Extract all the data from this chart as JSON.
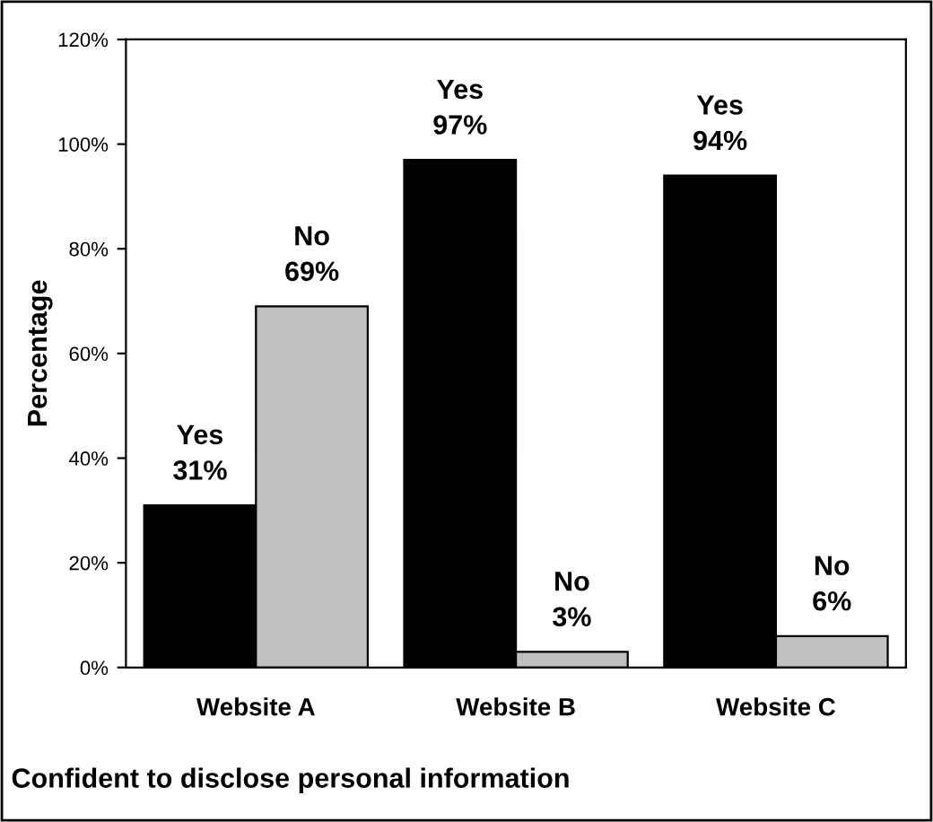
{
  "chart_data": {
    "type": "bar",
    "title": "Confident to disclose personal information",
    "ylabel": "Percentage",
    "categories": [
      "Website A",
      "Website B",
      "Website C"
    ],
    "series": [
      {
        "name": "Yes",
        "color": "#000000",
        "values": [
          31,
          97,
          94
        ],
        "value_labels": [
          "31%",
          "97%",
          "94%"
        ]
      },
      {
        "name": "No",
        "color": "#c0c0c0",
        "values": [
          69,
          3,
          6
        ],
        "value_labels": [
          "69%",
          "3%",
          "6%"
        ]
      }
    ],
    "ylim": [
      0,
      120
    ],
    "yticks": [
      {
        "value": 0,
        "label": "0%"
      },
      {
        "value": 20,
        "label": "20%"
      },
      {
        "value": 40,
        "label": "40%"
      },
      {
        "value": 60,
        "label": "60%"
      },
      {
        "value": 80,
        "label": "80%"
      },
      {
        "value": 100,
        "label": "100%"
      },
      {
        "value": 120,
        "label": "120%"
      }
    ],
    "grid": false,
    "legend": false
  }
}
